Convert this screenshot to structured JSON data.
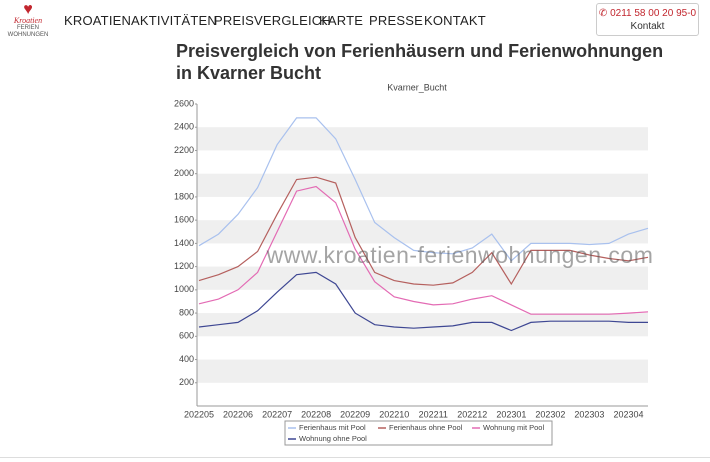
{
  "header": {
    "logo": {
      "name": "Kroatien",
      "line1": "FERIEN",
      "line2": "WOHNUNGEN"
    },
    "nav": [
      "KROATIEN",
      "AKTIVITÄTEN",
      "PREISVERGLEICH",
      "KARTE",
      "PRESSE",
      "KONTAKT"
    ],
    "contact": {
      "phone": "0211 58 00 20 95-0",
      "label": "Kontakt"
    }
  },
  "page_title": "Preisvergleich von Ferienhäusern und Ferienwohnungen in Kvarner Bucht",
  "chart_data": {
    "type": "line",
    "title": "Kvarner_Bucht",
    "watermark": "www.kroatien-ferienwohnungen.com",
    "categories": [
      "202205",
      null,
      "202206",
      null,
      "202207",
      null,
      "202208",
      null,
      "202209",
      null,
      "202210",
      null,
      "202211",
      null,
      "202212",
      null,
      "202301",
      null,
      "202302",
      null,
      "202303",
      null,
      "202304",
      null
    ],
    "series": [
      {
        "name": "Ferienhaus mit Pool",
        "color": "#a9c1ee",
        "values": [
          1380,
          1480,
          1650,
          1880,
          2250,
          2480,
          2480,
          2300,
          1950,
          1580,
          1450,
          1340,
          1320,
          1310,
          1360,
          1480,
          1250,
          1400,
          1400,
          1400,
          1390,
          1400,
          1480,
          1530
        ]
      },
      {
        "name": "Ferienhaus ohne Pool",
        "color": "#b5605e",
        "values": [
          1080,
          1130,
          1200,
          1330,
          1650,
          1950,
          1970,
          1920,
          1450,
          1150,
          1080,
          1050,
          1040,
          1060,
          1150,
          1320,
          1050,
          1340,
          1340,
          1340,
          1300,
          1270,
          1250,
          1280
        ]
      },
      {
        "name": "Wohnung mit Pool",
        "color": "#e36bb4",
        "values": [
          880,
          920,
          1000,
          1150,
          1500,
          1850,
          1890,
          1750,
          1350,
          1070,
          940,
          900,
          870,
          880,
          920,
          950,
          870,
          790,
          790,
          790,
          790,
          790,
          800,
          810
        ]
      },
      {
        "name": "Wohnung ohne Pool",
        "color": "#3e4793",
        "values": [
          680,
          700,
          720,
          820,
          980,
          1130,
          1150,
          1050,
          800,
          700,
          680,
          670,
          680,
          690,
          720,
          720,
          650,
          720,
          730,
          730,
          730,
          730,
          720,
          720
        ]
      }
    ],
    "ylim": [
      0,
      2600
    ],
    "yticks": [
      200,
      400,
      600,
      800,
      1000,
      1200,
      1400,
      1600,
      1800,
      2000,
      2200,
      2400,
      2600
    ],
    "grid": true
  }
}
